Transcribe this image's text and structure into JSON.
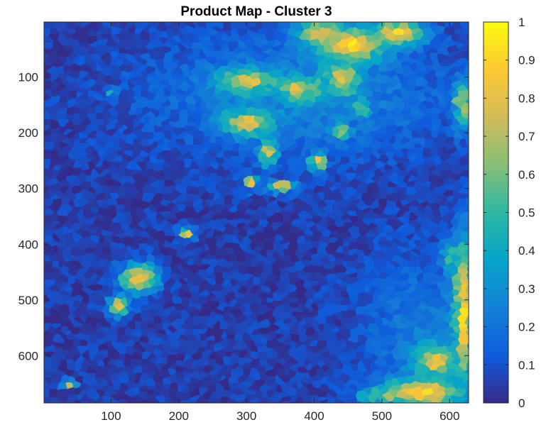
{
  "chart_data": {
    "type": "heatmap",
    "title": "Product Map - Cluster 3",
    "xlabel": "",
    "ylabel": "",
    "x_range": [
      1,
      628
    ],
    "y_range": [
      1,
      685
    ],
    "y_reversed": true,
    "x_ticks": [
      100,
      200,
      300,
      400,
      500,
      600
    ],
    "y_ticks": [
      100,
      200,
      300,
      400,
      500,
      600
    ],
    "colorbar": {
      "colormap": "parula",
      "range": [
        0,
        1
      ],
      "ticks": [
        0,
        0.1,
        0.2,
        0.3,
        0.4,
        0.5,
        0.6,
        0.7,
        0.8,
        0.9,
        1
      ],
      "colors": [
        "#352a87",
        "#0f5cdd",
        "#1481d6",
        "#06a4ca",
        "#2eb7a4",
        "#87bf77",
        "#d1bb59",
        "#fec832",
        "#f9fb0e"
      ]
    },
    "background_level": 0.05,
    "high_regions": [
      {
        "x": 455,
        "y": 40,
        "sx": 55,
        "sy": 35,
        "peak": 0.88
      },
      {
        "x": 520,
        "y": 20,
        "sx": 45,
        "sy": 25,
        "peak": 0.85
      },
      {
        "x": 410,
        "y": 20,
        "sx": 40,
        "sy": 25,
        "peak": 0.8
      },
      {
        "x": 300,
        "y": 105,
        "sx": 45,
        "sy": 22,
        "peak": 0.8
      },
      {
        "x": 380,
        "y": 120,
        "sx": 30,
        "sy": 22,
        "peak": 0.8
      },
      {
        "x": 440,
        "y": 100,
        "sx": 28,
        "sy": 30,
        "peak": 0.8
      },
      {
        "x": 300,
        "y": 180,
        "sx": 38,
        "sy": 25,
        "peak": 0.78
      },
      {
        "x": 330,
        "y": 235,
        "sx": 14,
        "sy": 25,
        "peak": 0.78
      },
      {
        "x": 305,
        "y": 290,
        "sx": 12,
        "sy": 14,
        "peak": 0.78
      },
      {
        "x": 350,
        "y": 295,
        "sx": 22,
        "sy": 12,
        "peak": 0.78
      },
      {
        "x": 405,
        "y": 250,
        "sx": 12,
        "sy": 18,
        "peak": 0.78
      },
      {
        "x": 440,
        "y": 195,
        "sx": 14,
        "sy": 14,
        "peak": 0.65
      },
      {
        "x": 470,
        "y": 155,
        "sx": 12,
        "sy": 14,
        "peak": 0.6
      },
      {
        "x": 620,
        "y": 150,
        "sx": 14,
        "sy": 45,
        "peak": 0.72
      },
      {
        "x": 140,
        "y": 460,
        "sx": 32,
        "sy": 30,
        "peak": 0.8
      },
      {
        "x": 110,
        "y": 510,
        "sx": 16,
        "sy": 22,
        "peak": 0.78
      },
      {
        "x": 210,
        "y": 380,
        "sx": 15,
        "sy": 10,
        "peak": 0.75
      },
      {
        "x": 100,
        "y": 125,
        "sx": 6,
        "sy": 6,
        "peak": 0.85
      },
      {
        "x": 35,
        "y": 650,
        "sx": 12,
        "sy": 8,
        "peak": 0.8
      },
      {
        "x": 620,
        "y": 520,
        "sx": 16,
        "sy": 150,
        "peak": 0.88
      },
      {
        "x": 560,
        "y": 665,
        "sx": 70,
        "sy": 28,
        "peak": 0.85
      },
      {
        "x": 580,
        "y": 610,
        "sx": 35,
        "sy": 30,
        "peak": 0.8
      },
      {
        "x": 500,
        "y": 670,
        "sx": 40,
        "sy": 15,
        "peak": 0.7
      },
      {
        "x": 600,
        "y": 420,
        "sx": 12,
        "sy": 28,
        "peak": 0.55
      }
    ],
    "medium_band": {
      "x": 380,
      "y": 130,
      "sx": 220,
      "sy": 110,
      "peak": 0.22
    },
    "medium_band_2": {
      "x": 560,
      "y": 560,
      "sx": 90,
      "sy": 140,
      "peak": 0.18
    }
  }
}
